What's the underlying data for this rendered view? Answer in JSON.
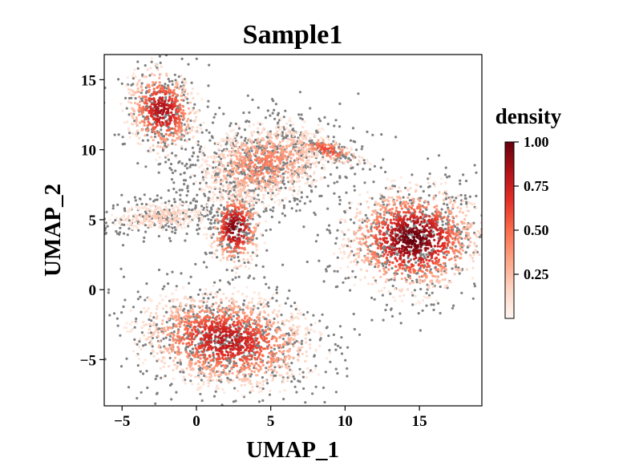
{
  "chart_data": {
    "type": "scatter",
    "subtype": "umap-density",
    "title": "Sample1",
    "xlabel": "UMAP_1",
    "ylabel": "UMAP_2",
    "xlim": [
      -6.2,
      19.2
    ],
    "ylim": [
      -8.3,
      16.8
    ],
    "xticks": [
      -5,
      0,
      5,
      10,
      15
    ],
    "xtick_labels": [
      "−5",
      "0",
      "5",
      "10",
      "15"
    ],
    "yticks": [
      -5,
      0,
      5,
      10,
      15
    ],
    "ytick_labels": [
      "−5",
      "0",
      "5",
      "10",
      "15"
    ],
    "background_color": "#808080",
    "colormap": [
      "#fff5f0",
      "#fdd4c2",
      "#fca486",
      "#fb6c4c",
      "#e32f27",
      "#b11218",
      "#67000d"
    ],
    "colorbar": {
      "title": "density",
      "range": [
        0.0,
        1.0
      ],
      "ticks": [
        0.25,
        0.5,
        0.75,
        1.0
      ],
      "tick_labels": [
        "0.25",
        "0.50",
        "0.75",
        "1.00"
      ]
    },
    "clusters": [
      {
        "name": "top-left",
        "x": -2.3,
        "y": 12.8,
        "sx": 1.2,
        "sy": 1.6,
        "rot": 0.2,
        "peak": 0.85
      },
      {
        "name": "center",
        "x": 2.6,
        "y": 4.4,
        "sx": 0.9,
        "sy": 1.4,
        "rot": 0.0,
        "peak": 0.95
      },
      {
        "name": "right",
        "x": 14.6,
        "y": 3.6,
        "sx": 2.3,
        "sy": 1.9,
        "rot": 0.0,
        "peak": 1.0
      },
      {
        "name": "bottom",
        "x": 2.0,
        "y": -3.6,
        "sx": 3.0,
        "sy": 1.7,
        "rot": -0.15,
        "peak": 0.8
      },
      {
        "name": "upper-arms",
        "x": 4.5,
        "y": 9.0,
        "sx": 2.4,
        "sy": 1.5,
        "rot": 0.3,
        "peak": 0.45
      },
      {
        "name": "streak",
        "x": 8.8,
        "y": 10.0,
        "sx": 1.4,
        "sy": 0.4,
        "rot": -0.35,
        "peak": 0.6
      },
      {
        "name": "left-arm",
        "x": -2.5,
        "y": 5.2,
        "sx": 2.0,
        "sy": 0.6,
        "rot": 0.05,
        "peak": 0.2
      }
    ]
  }
}
